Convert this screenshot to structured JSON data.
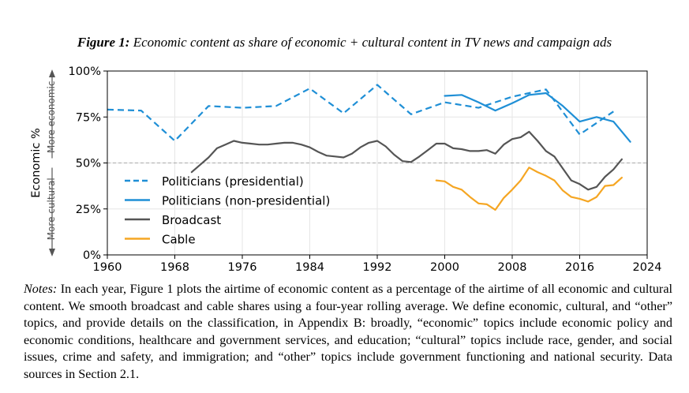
{
  "figure": {
    "label": "Figure 1:",
    "title": "Economic content as share of economic + cultural content in TV news and campaign ads"
  },
  "notes": {
    "label": "Notes:",
    "text": "In each year, Figure 1 plots the airtime of economic content as a percentage of the airtime of all economic and cultural content. We smooth broadcast and cable shares using a four-year rolling average. We define economic, cultural, and “other” topics, and provide details on the classification, in Appendix B: broadly, “economic” topics include economic policy and economic conditions, healthcare and government services, and education; “cultural” topics include race, gender, and social issues, crime and safety, and immigration; and “other” topics include government functioning and national security. Data sources in Section 2.1."
  },
  "chart_data": {
    "type": "line",
    "ylabel": "Economic %",
    "annotations": {
      "upper": "More economic",
      "lower": "More cultural"
    },
    "xlim": [
      1960,
      2024
    ],
    "ylim": [
      0,
      100
    ],
    "xticks": [
      1960,
      1968,
      1976,
      1984,
      1992,
      2000,
      2008,
      2016,
      2024
    ],
    "yticks": [
      0,
      25,
      50,
      75,
      100
    ],
    "ytick_labels": [
      "0%",
      "25%",
      "50%",
      "75%",
      "100%"
    ],
    "reference_line": 50,
    "grid": true,
    "legend_position": "lower-left",
    "series": [
      {
        "name": "Politicians (presidential)",
        "color": "#1f8fd6",
        "style": "dashed",
        "points": [
          [
            1960,
            79
          ],
          [
            1964,
            78.5
          ],
          [
            1968,
            62
          ],
          [
            1972,
            81
          ],
          [
            1976,
            80
          ],
          [
            1980,
            81
          ],
          [
            1984,
            90.5
          ],
          [
            1988,
            77
          ],
          [
            1992,
            92.5
          ],
          [
            1996,
            76.5
          ],
          [
            2000,
            83
          ],
          [
            2004,
            80
          ],
          [
            2008,
            86
          ],
          [
            2012,
            90
          ],
          [
            2016,
            65.5
          ],
          [
            2020,
            78
          ]
        ]
      },
      {
        "name": "Politicians (non-presidential)",
        "color": "#1f8fd6",
        "style": "solid",
        "points": [
          [
            2000,
            86.5
          ],
          [
            2002,
            87
          ],
          [
            2004,
            83
          ],
          [
            2006,
            78.5
          ],
          [
            2008,
            82.5
          ],
          [
            2010,
            87
          ],
          [
            2012,
            88
          ],
          [
            2014,
            81
          ],
          [
            2016,
            72.5
          ],
          [
            2018,
            75
          ],
          [
            2020,
            72.5
          ],
          [
            2022,
            61.5
          ]
        ]
      },
      {
        "name": "Broadcast",
        "color": "#555555",
        "style": "solid",
        "points": [
          [
            1970,
            45
          ],
          [
            1971,
            49
          ],
          [
            1972,
            53
          ],
          [
            1973,
            58
          ],
          [
            1974,
            60
          ],
          [
            1975,
            62
          ],
          [
            1976,
            61
          ],
          [
            1977,
            60.5
          ],
          [
            1978,
            60
          ],
          [
            1979,
            60
          ],
          [
            1980,
            60.5
          ],
          [
            1981,
            61
          ],
          [
            1982,
            61
          ],
          [
            1983,
            60
          ],
          [
            1984,
            58.5
          ],
          [
            1985,
            56
          ],
          [
            1986,
            54
          ],
          [
            1987,
            53.5
          ],
          [
            1988,
            53
          ],
          [
            1989,
            55
          ],
          [
            1990,
            58.5
          ],
          [
            1991,
            61
          ],
          [
            1992,
            62
          ],
          [
            1993,
            59
          ],
          [
            1994,
            54.5
          ],
          [
            1995,
            51
          ],
          [
            1996,
            50.5
          ],
          [
            1997,
            53.5
          ],
          [
            1998,
            57
          ],
          [
            1999,
            60.5
          ],
          [
            2000,
            60.5
          ],
          [
            2001,
            58
          ],
          [
            2002,
            57.5
          ],
          [
            2003,
            56.5
          ],
          [
            2004,
            56.5
          ],
          [
            2005,
            57
          ],
          [
            2006,
            55
          ],
          [
            2007,
            60
          ],
          [
            2008,
            63
          ],
          [
            2009,
            64
          ],
          [
            2010,
            67
          ],
          [
            2011,
            62
          ],
          [
            2012,
            56.5
          ],
          [
            2013,
            53.5
          ],
          [
            2014,
            47
          ],
          [
            2015,
            40.5
          ],
          [
            2016,
            38.5
          ],
          [
            2017,
            35.5
          ],
          [
            2018,
            37
          ],
          [
            2019,
            42.5
          ],
          [
            2020,
            46.5
          ],
          [
            2021,
            52
          ]
        ]
      },
      {
        "name": "Cable",
        "color": "#f5a623",
        "style": "solid",
        "points": [
          [
            1999,
            40.5
          ],
          [
            2000,
            40
          ],
          [
            2001,
            37
          ],
          [
            2002,
            35.5
          ],
          [
            2003,
            31.5
          ],
          [
            2004,
            28
          ],
          [
            2005,
            27.5
          ],
          [
            2006,
            24.5
          ],
          [
            2007,
            31
          ],
          [
            2008,
            35.5
          ],
          [
            2009,
            40.5
          ],
          [
            2010,
            47.5
          ],
          [
            2011,
            45
          ],
          [
            2012,
            43
          ],
          [
            2013,
            40.5
          ],
          [
            2014,
            35
          ],
          [
            2015,
            31.5
          ],
          [
            2016,
            30.5
          ],
          [
            2017,
            29
          ],
          [
            2018,
            31.5
          ],
          [
            2019,
            37.5
          ],
          [
            2020,
            38
          ],
          [
            2021,
            42
          ]
        ]
      }
    ]
  }
}
